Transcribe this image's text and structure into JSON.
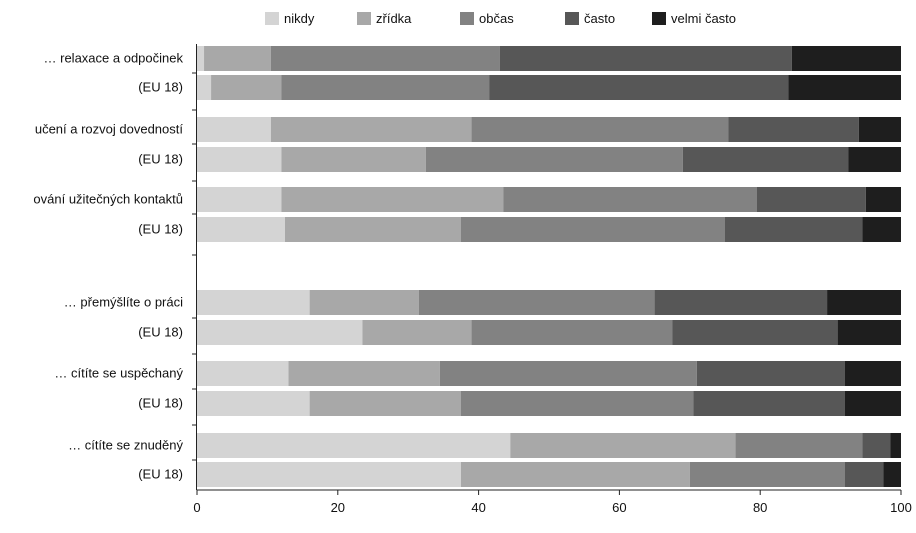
{
  "chart_data": {
    "type": "bar",
    "orientation": "horizontal",
    "stacked": true,
    "title": "",
    "xlabel": "",
    "ylabel": "",
    "xlim": [
      0,
      100
    ],
    "x_ticks": [
      "0",
      "20",
      "40",
      "60",
      "80",
      "100"
    ],
    "legend_position": "top",
    "grid": false,
    "categories": [
      "… relaxace a odpočinek",
      "(EU 18)",
      "učení a rozvoj dovedností",
      "(EU 18)",
      "ování užitečných kontaktů",
      "(EU 18)",
      "… přemýšlíte o práci",
      "(EU 18)",
      "… cítíte se uspěchaný",
      "(EU 18)",
      "… cítíte se znuděný",
      "(EU 18)"
    ],
    "series": [
      {
        "name": "nikdy",
        "color": "#d4d4d4",
        "values": [
          1,
          2,
          10.5,
          12,
          12,
          12.5,
          16,
          23.5,
          13,
          16,
          44.5,
          37.5
        ]
      },
      {
        "name": "zřídka",
        "color": "#a8a8a8",
        "values": [
          9.5,
          10,
          28.5,
          20.5,
          31.5,
          25,
          15.5,
          15.5,
          21.5,
          21.5,
          32,
          32.5
        ]
      },
      {
        "name": "občas",
        "color": "#828282",
        "values": [
          32.5,
          29.5,
          36.5,
          36.5,
          36,
          37.5,
          33.5,
          28.5,
          36.5,
          33,
          18,
          22
        ]
      },
      {
        "name": "často",
        "color": "#575757",
        "values": [
          41.5,
          42.5,
          18.5,
          23.5,
          15.5,
          19.5,
          24.5,
          23.5,
          21,
          21.5,
          4,
          5.5
        ]
      },
      {
        "name": "velmi často",
        "color": "#1e1e1e",
        "values": [
          15.5,
          16,
          6,
          7.5,
          5,
          5.5,
          10.5,
          9,
          8,
          8,
          1.5,
          2.5
        ]
      }
    ]
  }
}
